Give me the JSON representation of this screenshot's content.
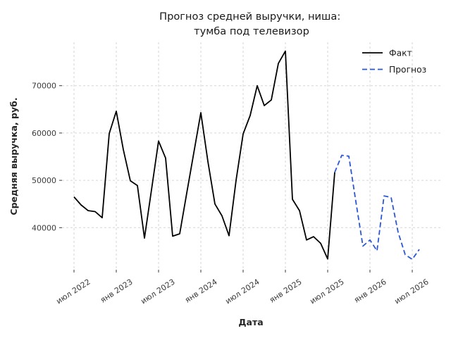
{
  "title": {
    "text_line1": "Прогноз средней выручки, ниша:",
    "text_line2": "тумба под телевизор"
  },
  "legend": {
    "items": [
      {
        "label": "Факт"
      },
      {
        "label": "Прогноз"
      }
    ]
  },
  "colors": {
    "fact": "#000000",
    "forecast": "#2a57d3",
    "grid": "#d6d6d6",
    "tick": "#3b3b3b",
    "text": "#262626",
    "title": "#1a1a1a",
    "background": "#ffffff"
  },
  "chart_data": {
    "type": "line",
    "title": "Прогноз средней выручки, ниша: тумба под телевизор",
    "xlabel": "Дата",
    "ylabel": "Средняя выручка, руб.",
    "ylim": [
      31000,
      79500
    ],
    "grid": true,
    "grid_style": "dashed",
    "legend_position": "upper right",
    "x_ticks": [
      {
        "label": "июл 2022",
        "month": "2022-07"
      },
      {
        "label": "янв 2023",
        "month": "2023-01"
      },
      {
        "label": "июл 2023",
        "month": "2023-07"
      },
      {
        "label": "янв 2024",
        "month": "2024-01"
      },
      {
        "label": "июл 2024",
        "month": "2024-07"
      },
      {
        "label": "янв 2025",
        "month": "2025-01"
      },
      {
        "label": "июл 2025",
        "month": "2025-07"
      },
      {
        "label": "янв 2026",
        "month": "2026-01"
      },
      {
        "label": "июл 2026",
        "month": "2026-07"
      }
    ],
    "y_ticks": [
      {
        "label": "40000",
        "value": 40000
      },
      {
        "label": "50000",
        "value": 50000
      },
      {
        "label": "60000",
        "value": 60000
      },
      {
        "label": "70000",
        "value": 70000
      }
    ],
    "series": [
      {
        "name": "Факт",
        "color": "#000000",
        "line_style": "solid",
        "months": [
          "2022-07",
          "2022-08",
          "2022-09",
          "2022-10",
          "2022-11",
          "2022-12",
          "2023-01",
          "2023-02",
          "2023-03",
          "2023-04",
          "2023-05",
          "2023-06",
          "2023-07",
          "2023-08",
          "2023-09",
          "2023-10",
          "2023-11",
          "2023-12",
          "2024-01",
          "2024-02",
          "2024-03",
          "2024-04",
          "2024-05",
          "2024-06",
          "2024-07",
          "2024-08",
          "2024-09",
          "2024-10",
          "2024-11",
          "2024-12",
          "2025-01",
          "2025-02",
          "2025-03",
          "2025-04",
          "2025-05",
          "2025-06",
          "2025-07",
          "2025-08"
        ],
        "values": [
          46500,
          44800,
          43600,
          43400,
          42100,
          59900,
          64600,
          56500,
          49900,
          48900,
          37800,
          48000,
          58300,
          54700,
          38200,
          38700,
          47300,
          55800,
          64300,
          54000,
          45000,
          42500,
          38300,
          50000,
          59800,
          63700,
          70000,
          65800,
          67000,
          74700,
          77300,
          46000,
          43600,
          37400,
          38100,
          36700,
          33400,
          51700
        ]
      },
      {
        "name": "Прогноз",
        "color": "#2a57d3",
        "line_style": "dashed",
        "months": [
          "2025-08",
          "2025-09",
          "2025-10",
          "2025-11",
          "2025-12",
          "2026-01",
          "2026-02",
          "2026-03",
          "2026-04",
          "2026-05",
          "2026-06",
          "2026-07",
          "2026-08"
        ],
        "values": [
          51700,
          55300,
          55100,
          45500,
          36100,
          37400,
          35100,
          46700,
          46400,
          39000,
          34300,
          33300,
          35400
        ]
      }
    ]
  }
}
